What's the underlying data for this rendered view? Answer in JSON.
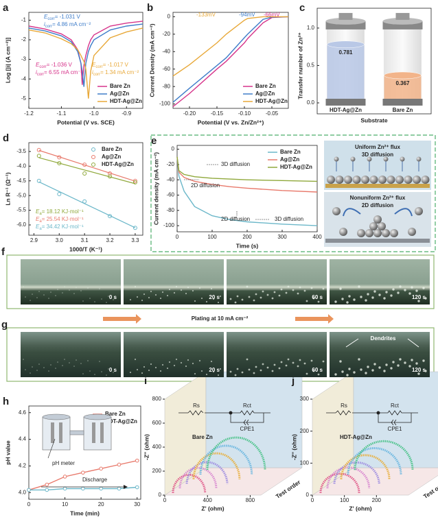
{
  "chart_data": [
    {
      "panel": "a",
      "type": "line",
      "xlabel": "Potential (V vs. SCE)",
      "ylabel": "Log [|i| (A cm⁻²)]",
      "x": [
        -1.2,
        -1.15,
        -1.1,
        -1.07,
        -1.05,
        -1.04,
        -1.036,
        -1.031,
        -1.025,
        -1.017,
        -1.01,
        -1.0,
        -0.95,
        -0.9,
        -0.85
      ],
      "xlim": [
        -1.2,
        -0.85
      ],
      "ylim": [
        -5.5,
        -0.6
      ],
      "xticks": [
        -1.2,
        -1.1,
        {
          "value": -1.0,
          "label": "-1.0"
        },
        -0.9
      ],
      "yticks": [
        -1,
        -2,
        -3,
        -4,
        -5
      ],
      "series": [
        {
          "name": "Bare Zn",
          "color": "#d6338a",
          "values": [
            -1.3,
            -1.45,
            -1.7,
            -2.0,
            -2.5,
            -3.2,
            -4.3,
            -3.3,
            -2.8,
            -2.3,
            -2.0,
            -1.75,
            -1.3,
            -1.15,
            -1.05
          ]
        },
        {
          "name": "Ag@Zn",
          "color": "#3d7cc9",
          "values": [
            -1.4,
            -1.55,
            -1.8,
            -2.1,
            -2.6,
            -3.2,
            -3.6,
            -4.4,
            -3.2,
            -2.6,
            -2.3,
            -2.0,
            -1.5,
            -1.3,
            -1.2
          ]
        },
        {
          "name": "HDT-Ag@Zn",
          "color": "#e8a838",
          "values": [
            -1.5,
            -1.65,
            -1.95,
            -2.2,
            -2.5,
            -2.8,
            -2.95,
            -3.1,
            -3.5,
            -5.0,
            -3.6,
            -2.8,
            -1.9,
            -1.6,
            -1.4
          ]
        }
      ],
      "legend": "lower right",
      "annotations": [
        {
          "sym": "E",
          "sub": "corr",
          "text": "= -1.031 V",
          "color": "#3d7cc9"
        },
        {
          "sym": "i",
          "sub": "corr",
          "text": "= 4.86 mA cm⁻²",
          "color": "#3d7cc9"
        },
        {
          "sym": "E",
          "sub": "corr",
          "text": "= -1.036 V",
          "color": "#d6338a"
        },
        {
          "sym": "i",
          "sub": "corr",
          "text": "= 6.55 mA cm⁻²",
          "color": "#d6338a"
        },
        {
          "sym": "E",
          "sub": "corr",
          "text": "= -1.017 V",
          "color": "#e8a838"
        },
        {
          "sym": "i",
          "sub": "corr",
          "text": "= 1.34 mA cm⁻²",
          "color": "#e8a838"
        }
      ]
    },
    {
      "panel": "b",
      "type": "line",
      "xlabel": "Potential (V vs. Zn/Zn²⁺)",
      "ylabel": "Current Density (mA cm⁻²)",
      "x": [
        -0.23,
        -0.2,
        -0.15,
        -0.133,
        -0.1,
        -0.094,
        -0.066,
        -0.05,
        -0.02
      ],
      "xlim": [
        -0.23,
        -0.02
      ],
      "ylim": [
        -105,
        5
      ],
      "xticks": [
        {
          "value": -0.2,
          "label": "-0.20"
        },
        -0.15,
        {
          "value": -0.1,
          "label": "-0.10"
        },
        -0.05
      ],
      "yticks": [
        0,
        -20,
        -40,
        -60,
        -80,
        -100
      ],
      "series": [
        {
          "name": "Bare Zn",
          "color": "#d6338a",
          "values": [
            -103,
            -88,
            -60,
            -51,
            -30,
            -25,
            -7,
            -1,
            0
          ]
        },
        {
          "name": "Ag@Zn",
          "color": "#3d7cc9",
          "values": [
            -98,
            -82,
            -56,
            -47,
            -24,
            -20,
            -3,
            -0.5,
            0
          ]
        },
        {
          "name": "HDT-Ag@Zn",
          "color": "#e8a838",
          "values": [
            -68,
            -55,
            -30,
            -20,
            -4,
            -2,
            0,
            0,
            0
          ]
        }
      ],
      "legend": "lower right",
      "annotations": [
        {
          "text": "-133mV",
          "color": "#e8a838"
        },
        {
          "text": "-94mV",
          "color": "#3d7cc9"
        },
        {
          "text": "-66mV",
          "color": "#d6338a"
        }
      ]
    },
    {
      "panel": "c",
      "type": "cylinder",
      "xlabel": "Substrate",
      "ylabel": "Transfer number of Zn²⁺",
      "categories": [
        "HDT-Ag@Zn",
        "Bare Zn"
      ],
      "values": [
        0.781,
        0.367
      ],
      "colors": [
        "#b9c8e6",
        "#f2b48a"
      ],
      "ylim": [
        0,
        1.1
      ],
      "yticks": [
        {
          "value": 0,
          "label": "0.0"
        },
        0.5,
        {
          "value": 1,
          "label": "1.0"
        }
      ]
    },
    {
      "panel": "d",
      "type": "scatter",
      "xlabel": "1000/T (K⁻¹)",
      "ylabel": "Ln R⁻¹ (Ω⁻¹)",
      "x": [
        2.92,
        3.0,
        3.1,
        3.2,
        3.3
      ],
      "xlim": [
        2.88,
        3.33
      ],
      "ylim": [
        -6.35,
        -3.2
      ],
      "xticks": [
        2.9,
        {
          "value": 3,
          "label": "3.0"
        },
        3.1,
        3.2,
        3.3
      ],
      "yticks": [
        -3.5,
        {
          "value": -4,
          "label": "-4.0"
        },
        -4.5,
        {
          "value": -5,
          "label": "-5.0"
        },
        -5.5,
        {
          "value": -6,
          "label": "-6.0"
        }
      ],
      "series": [
        {
          "name": "Bare Zn",
          "color": "#6bb7c9",
          "values": [
            -4.5,
            -4.95,
            -5.2,
            -5.7,
            -6.1
          ]
        },
        {
          "name": "Ag@Zn",
          "color": "#e8796b",
          "values": [
            -3.45,
            -3.7,
            -3.95,
            -4.25,
            -4.5
          ]
        },
        {
          "name": "HDT-Ag@Zn",
          "color": "#8fa83a",
          "values": [
            -3.65,
            -3.9,
            -4.25,
            -4.35,
            -4.55
          ]
        }
      ],
      "legend": "upper right",
      "annotations": [
        {
          "sym": "E",
          "sub": "a",
          "text": "= 18.12 KJ·mol⁻¹",
          "color": "#8fa83a"
        },
        {
          "sym": "E",
          "sub": "a",
          "text": "= 25.54 KJ·mol⁻¹",
          "color": "#e8796b"
        },
        {
          "sym": "E",
          "sub": "a",
          "text": "= 34.42 KJ·mol⁻¹",
          "color": "#6bb7c9"
        }
      ]
    },
    {
      "panel": "e",
      "type": "line",
      "xlabel": "Time (s)",
      "ylabel": "Current density (mA cm⁻²)",
      "x": [
        0,
        5,
        20,
        50,
        100,
        150,
        200,
        300,
        400
      ],
      "xlim": [
        0,
        400
      ],
      "ylim": [
        -108,
        5
      ],
      "xticks": [
        0,
        100,
        200,
        300,
        400
      ],
      "yticks": [
        0,
        -20,
        -40,
        -60,
        -80,
        -100
      ],
      "series": [
        {
          "name": "Bare Zn",
          "color": "#6bb7c9",
          "values": [
            -10,
            -35,
            -55,
            -75,
            -87,
            -92,
            -95,
            -98,
            -100
          ]
        },
        {
          "name": "Ag@Zn",
          "color": "#e8796b",
          "values": [
            -10,
            -30,
            -37,
            -42,
            -46,
            -49,
            -51,
            -54,
            -56
          ]
        },
        {
          "name": "HDT-Ag@Zn",
          "color": "#8fa83a",
          "values": [
            -10,
            -28,
            -33,
            -36,
            -38,
            -39,
            -40,
            -41,
            -42
          ]
        }
      ],
      "legend": "upper right",
      "annotations": [
        {
          "text": "3D diffusion"
        },
        {
          "text": "2D diffusion"
        },
        {
          "text": "2D diffusion"
        },
        {
          "text": "3D diffusion"
        }
      ]
    },
    {
      "panel": "h",
      "type": "line",
      "xlabel": "Time (min)",
      "ylabel": "pH value",
      "x": [
        0,
        5,
        10,
        15,
        20,
        25,
        30
      ],
      "xlim": [
        0,
        31
      ],
      "ylim": [
        3.95,
        4.65
      ],
      "xticks": [
        0,
        10,
        20,
        30
      ],
      "yticks": [
        {
          "value": 4,
          "label": "4.0"
        },
        4.2,
        4.4,
        4.6
      ],
      "series": [
        {
          "name": "Bare Zn",
          "color": "#e8796b",
          "values": [
            4.02,
            4.06,
            4.12,
            4.15,
            4.18,
            4.21,
            4.24
          ]
        },
        {
          "name": "HDT-Ag@Zn",
          "color": "#6bb7c9",
          "values": [
            4.02,
            4.02,
            4.03,
            4.03,
            4.03,
            4.03,
            4.04
          ]
        }
      ],
      "legend": "upper right",
      "annotations": [
        {
          "text": "pH meter"
        },
        {
          "text": "Discharge"
        }
      ]
    },
    {
      "panel": "i",
      "type": "eis3d",
      "title": "Bare Zn",
      "ylabel": "-Z'' (ohm)",
      "xlabel": "Z' (ohm)",
      "zlabel": "Test order",
      "circuit": [
        "Rs",
        "Rct",
        "CPE1"
      ],
      "ylim": [
        0,
        800
      ],
      "yticks": [
        0,
        200,
        400,
        600,
        800
      ],
      "xlim": [
        0,
        900
      ],
      "xticks": [
        0,
        400,
        800
      ],
      "values": [
        300,
        340,
        380,
        430,
        480,
        540
      ],
      "colors": [
        "#e05a8a",
        "#d98ad0",
        "#9f8ee0",
        "#e8b040",
        "#6bb7e0",
        "#4cc38a"
      ]
    },
    {
      "panel": "j",
      "type": "eis3d",
      "title": "HDT-Ag@Zn",
      "ylabel": "-Z'' (ohm)",
      "xlabel": "Z' (ohm)",
      "zlabel": "Test order",
      "circuit": [
        "Rs",
        "Rct",
        "CPE1"
      ],
      "ylim": [
        0,
        300
      ],
      "yticks": [
        0,
        100,
        200,
        300
      ],
      "xlim": [
        0,
        300
      ],
      "xticks": [
        0,
        100,
        200
      ],
      "values": [
        120,
        130,
        140,
        150,
        165,
        180
      ],
      "colors": [
        "#e05a8a",
        "#d98ad0",
        "#9f8ee0",
        "#e8b040",
        "#6bb7e0",
        "#4cc38a"
      ]
    }
  ],
  "schematic_e": {
    "top_title": "Uniform Zn²⁺ flux",
    "top_mode": "3D diffusion",
    "bottom_title": "Nonuniform Zn²⁺ flux",
    "bottom_mode": "2D diffusion"
  },
  "photos": {
    "f": {
      "panel": "f",
      "times": [
        "0 s",
        "20 s",
        "60 s",
        "120 s"
      ]
    },
    "plating": "Plating at 10 mA cm⁻²",
    "g": {
      "panel": "g",
      "times": [
        "0 s",
        "20 s",
        "60 s",
        "120 s"
      ],
      "annotation": "Dendrites"
    }
  }
}
